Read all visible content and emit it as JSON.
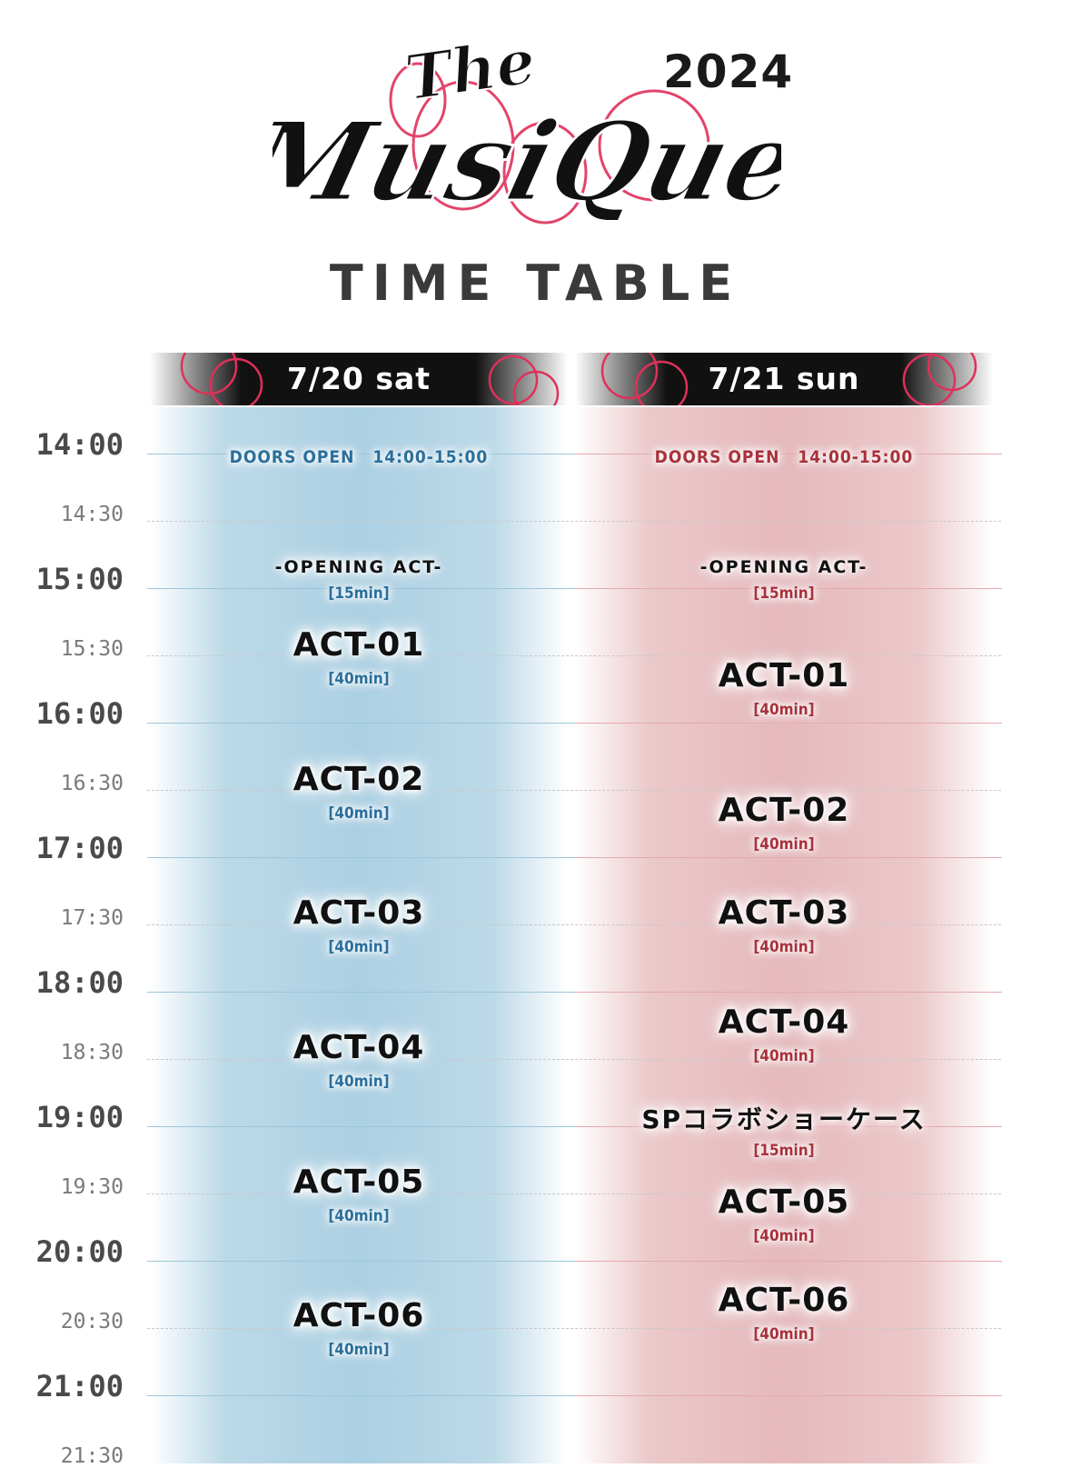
{
  "header": {
    "logo_text": "The MusiQuest",
    "year": "2024",
    "title": "TIME TABLE"
  },
  "colors": {
    "sat_accent": "#2b6f9b",
    "sun_accent": "#a8323c",
    "sat_column": "#acd0e3",
    "sun_column": "#e5b9bd",
    "logo_pink": "#e0305a"
  },
  "days": {
    "sat": {
      "label": "7/20 sat",
      "doors": "DOORS OPEN　14:00-15:00",
      "opening": {
        "name": "-OPENING ACT-",
        "duration": "[15min]"
      },
      "acts": [
        {
          "name": "ACT-01",
          "duration": "[40min]"
        },
        {
          "name": "ACT-02",
          "duration": "[40min]"
        },
        {
          "name": "ACT-03",
          "duration": "[40min]"
        },
        {
          "name": "ACT-04",
          "duration": "[40min]"
        },
        {
          "name": "ACT-05",
          "duration": "[40min]"
        },
        {
          "name": "ACT-06",
          "duration": "[40min]"
        }
      ]
    },
    "sun": {
      "label": "7/21 sun",
      "doors": "DOORS OPEN　14:00-15:00",
      "opening": {
        "name": "-OPENING ACT-",
        "duration": "[15min]"
      },
      "acts": [
        {
          "name": "ACT-01",
          "duration": "[40min]"
        },
        {
          "name": "ACT-02",
          "duration": "[40min]"
        },
        {
          "name": "ACT-03",
          "duration": "[40min]"
        },
        {
          "name": "ACT-04",
          "duration": "[40min]"
        },
        {
          "name": "ACT-05",
          "duration": "[40min]"
        },
        {
          "name": "ACT-06",
          "duration": "[40min]"
        }
      ],
      "special": {
        "name": "SPコラボショーケース",
        "duration": "[15min]"
      }
    }
  },
  "times": [
    "14:00",
    "14:30",
    "15:00",
    "15:30",
    "16:00",
    "16:30",
    "17:00",
    "17:30",
    "18:00",
    "18:30",
    "19:00",
    "19:30",
    "20:00",
    "20:30",
    "21:00",
    "21:30"
  ]
}
